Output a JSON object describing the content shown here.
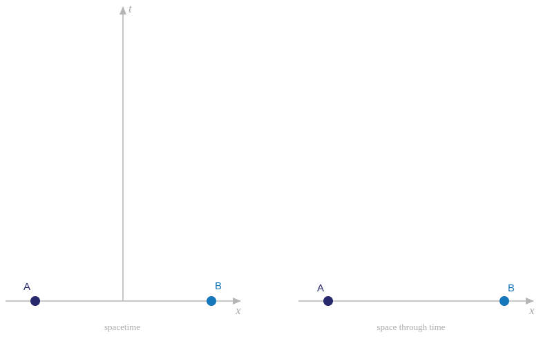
{
  "panels": [
    {
      "caption": "spacetime",
      "axes": {
        "x": "x",
        "t": "t"
      },
      "points": [
        {
          "label": "A"
        },
        {
          "label": "B"
        }
      ]
    },
    {
      "caption": "space through time",
      "axes": {
        "x": "x"
      },
      "points": [
        {
          "label": "A"
        },
        {
          "label": "B"
        }
      ]
    }
  ]
}
